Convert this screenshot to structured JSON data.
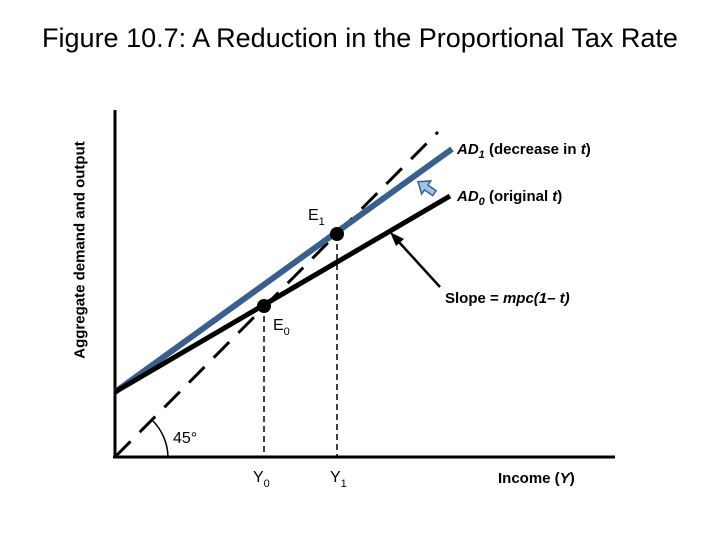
{
  "title": "Figure 10.7: A Reduction in the Proportional Tax Rate",
  "y_axis_label": "Aggregate demand and output",
  "x_axis_label": {
    "prefix": "Income (",
    "var": "Y",
    "suffix": ")"
  },
  "angle_label": "45°",
  "curves": {
    "ad1": {
      "name": "AD",
      "sub": "1",
      "note_prefix": " (decrease in ",
      "note_var": "t",
      "note_suffix": ")",
      "color": "#3a5f8c"
    },
    "ad0": {
      "name": "AD",
      "sub": "0",
      "note_prefix": " (original ",
      "note_var": "t",
      "note_suffix": ")",
      "color": "#000000"
    }
  },
  "points": {
    "e0": {
      "letter": "E",
      "sub": "0"
    },
    "e1": {
      "letter": "E",
      "sub": "1"
    }
  },
  "x_ticks": {
    "y0": {
      "letter": "Y",
      "sub": "0"
    },
    "y1": {
      "letter": "Y",
      "sub": "1"
    }
  },
  "slope_annotation": {
    "prefix": "Slope = ",
    "expr": "mpc(1– t)"
  },
  "colors": {
    "arrow_fill": "#9ec3ea",
    "arrow_stroke": "#3a5f8c"
  }
}
